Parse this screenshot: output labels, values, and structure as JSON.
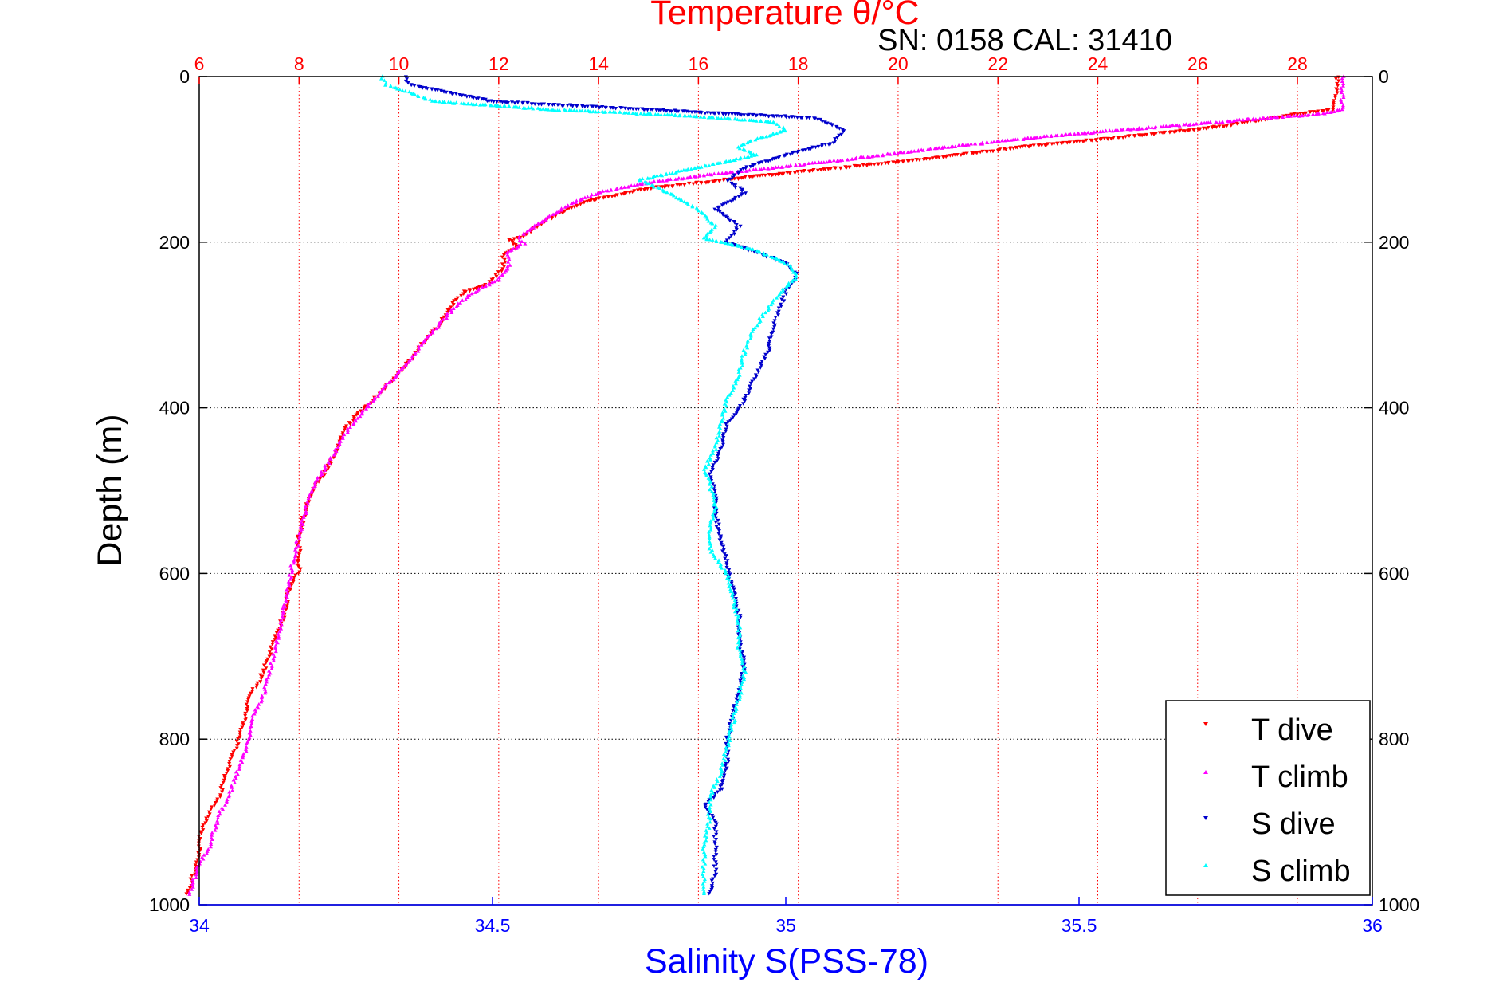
{
  "chart_data": {
    "type": "scatter",
    "title": "Temperature θ/°C",
    "subtitle": "SN: 0158  CAL: 31410",
    "xlabel": "Salinity S(PSS-78)",
    "x2label": "Temperature θ/°C",
    "ylabel": "Depth (m)",
    "xlim": [
      34,
      36
    ],
    "x2lim": [
      6,
      29.5
    ],
    "ylim": [
      0,
      1000
    ],
    "y_reversed": true,
    "grid": true,
    "legend_position": "bottom-right",
    "x_ticks": [
      "34",
      "34.5",
      "35",
      "35.5",
      "36"
    ],
    "x_tick_values": [
      34,
      34.5,
      35,
      35.5,
      36
    ],
    "x2_ticks": [
      "6",
      "8",
      "10",
      "12",
      "14",
      "16",
      "18",
      "20",
      "22",
      "24",
      "26",
      "28"
    ],
    "x2_tick_values": [
      6,
      8,
      10,
      12,
      14,
      16,
      18,
      20,
      22,
      24,
      26,
      28
    ],
    "y_ticks": [
      "0",
      "200",
      "400",
      "600",
      "800",
      "1000"
    ],
    "y_tick_values": [
      0,
      200,
      400,
      600,
      800,
      1000
    ],
    "colors": {
      "temperature_axis": "#ff0000",
      "salinity_axis": "#0000ff",
      "t_dive": "#ff0000",
      "t_climb": "#ff00ff",
      "s_dive": "#0000cc",
      "s_climb": "#00ffff"
    },
    "series": [
      {
        "name": "T dive",
        "axis": "temperature",
        "marker": "triangle-down",
        "color": "#ff0000",
        "points": [
          [
            28.8,
            0
          ],
          [
            28.8,
            20
          ],
          [
            28.7,
            40
          ],
          [
            28.0,
            45
          ],
          [
            26.5,
            60
          ],
          [
            25.0,
            70
          ],
          [
            22.5,
            85
          ],
          [
            20.5,
            100
          ],
          [
            18.0,
            115
          ],
          [
            16.5,
            125
          ],
          [
            15.0,
            135
          ],
          [
            13.8,
            150
          ],
          [
            13.2,
            165
          ],
          [
            12.8,
            180
          ],
          [
            12.5,
            193
          ],
          [
            12.2,
            197
          ],
          [
            12.4,
            205
          ],
          [
            12.1,
            215
          ],
          [
            12.1,
            230
          ],
          [
            11.8,
            250
          ],
          [
            11.3,
            260
          ],
          [
            11.0,
            280
          ],
          [
            10.8,
            300
          ],
          [
            10.5,
            320
          ],
          [
            10.2,
            345
          ],
          [
            9.8,
            370
          ],
          [
            9.5,
            390
          ],
          [
            9.2,
            405
          ],
          [
            9.0,
            420
          ],
          [
            8.8,
            440
          ],
          [
            8.7,
            460
          ],
          [
            8.5,
            480
          ],
          [
            8.3,
            495
          ],
          [
            8.2,
            510
          ],
          [
            8.1,
            530
          ],
          [
            8.0,
            555
          ],
          [
            8.0,
            575
          ],
          [
            8.0,
            595
          ],
          [
            7.8,
            620
          ],
          [
            7.7,
            650
          ],
          [
            7.5,
            680
          ],
          [
            7.4,
            700
          ],
          [
            7.2,
            730
          ],
          [
            7.0,
            750
          ],
          [
            6.9,
            780
          ],
          [
            6.8,
            800
          ],
          [
            6.6,
            830
          ],
          [
            6.5,
            850
          ],
          [
            6.4,
            870
          ],
          [
            6.2,
            890
          ],
          [
            6.0,
            920
          ],
          [
            6.0,
            940
          ],
          [
            5.9,
            960
          ],
          [
            5.8,
            980
          ],
          [
            5.7,
            990
          ]
        ]
      },
      {
        "name": "T climb",
        "axis": "temperature",
        "marker": "triangle-up",
        "color": "#ff00ff",
        "points": [
          [
            28.9,
            0
          ],
          [
            28.9,
            20
          ],
          [
            28.9,
            40
          ],
          [
            28.5,
            45
          ],
          [
            27.0,
            52
          ],
          [
            25.0,
            62
          ],
          [
            23.0,
            72
          ],
          [
            21.0,
            85
          ],
          [
            19.0,
            100
          ],
          [
            17.5,
            110
          ],
          [
            16.0,
            120
          ],
          [
            14.8,
            130
          ],
          [
            14.0,
            140
          ],
          [
            13.4,
            155
          ],
          [
            13.0,
            170
          ],
          [
            12.6,
            185
          ],
          [
            12.4,
            195
          ],
          [
            12.5,
            202
          ],
          [
            12.2,
            210
          ],
          [
            12.2,
            230
          ],
          [
            12.0,
            245
          ],
          [
            11.5,
            260
          ],
          [
            11.1,
            280
          ],
          [
            10.8,
            300
          ],
          [
            10.5,
            320
          ],
          [
            10.2,
            345
          ],
          [
            9.8,
            370
          ],
          [
            9.5,
            390
          ],
          [
            9.2,
            410
          ],
          [
            9.0,
            425
          ],
          [
            8.8,
            445
          ],
          [
            8.6,
            465
          ],
          [
            8.4,
            485
          ],
          [
            8.3,
            495
          ],
          [
            8.2,
            510
          ],
          [
            8.1,
            530
          ],
          [
            8.0,
            555
          ],
          [
            7.9,
            580
          ],
          [
            7.8,
            610
          ],
          [
            7.7,
            640
          ],
          [
            7.6,
            670
          ],
          [
            7.5,
            700
          ],
          [
            7.4,
            720
          ],
          [
            7.3,
            745
          ],
          [
            7.1,
            770
          ],
          [
            7.0,
            795
          ],
          [
            6.9,
            820
          ],
          [
            6.7,
            850
          ],
          [
            6.6,
            870
          ],
          [
            6.4,
            890
          ],
          [
            6.3,
            910
          ],
          [
            6.2,
            930
          ],
          [
            6.0,
            950
          ],
          [
            5.9,
            970
          ],
          [
            5.8,
            990
          ]
        ]
      },
      {
        "name": "S dive",
        "axis": "salinity",
        "marker": "triangle-down",
        "color": "#0000cc",
        "points": [
          [
            34.35,
            0
          ],
          [
            34.36,
            10
          ],
          [
            34.43,
            20
          ],
          [
            34.5,
            30
          ],
          [
            34.9,
            45
          ],
          [
            35.05,
            50
          ],
          [
            35.1,
            65
          ],
          [
            35.08,
            80
          ],
          [
            35.0,
            95
          ],
          [
            34.93,
            110
          ],
          [
            34.9,
            125
          ],
          [
            34.93,
            140
          ],
          [
            34.88,
            160
          ],
          [
            34.92,
            180
          ],
          [
            34.9,
            200
          ],
          [
            34.95,
            212
          ],
          [
            35.0,
            225
          ],
          [
            35.02,
            240
          ],
          [
            35.0,
            260
          ],
          [
            34.99,
            280
          ],
          [
            34.98,
            300
          ],
          [
            34.97,
            330
          ],
          [
            34.95,
            360
          ],
          [
            34.93,
            390
          ],
          [
            34.9,
            420
          ],
          [
            34.89,
            450
          ],
          [
            34.87,
            480
          ],
          [
            34.88,
            500
          ],
          [
            34.88,
            530
          ],
          [
            34.89,
            560
          ],
          [
            34.9,
            590
          ],
          [
            34.91,
            620
          ],
          [
            34.92,
            650
          ],
          [
            34.92,
            680
          ],
          [
            34.93,
            710
          ],
          [
            34.92,
            740
          ],
          [
            34.91,
            770
          ],
          [
            34.9,
            800
          ],
          [
            34.9,
            830
          ],
          [
            34.89,
            860
          ],
          [
            34.86,
            880
          ],
          [
            34.88,
            900
          ],
          [
            34.88,
            930
          ],
          [
            34.88,
            960
          ],
          [
            34.87,
            990
          ]
        ]
      },
      {
        "name": "S climb",
        "axis": "salinity",
        "marker": "triangle-up",
        "color": "#00ffff",
        "points": [
          [
            34.31,
            0
          ],
          [
            34.32,
            10
          ],
          [
            34.36,
            20
          ],
          [
            34.4,
            30
          ],
          [
            34.6,
            40
          ],
          [
            34.85,
            48
          ],
          [
            34.98,
            55
          ],
          [
            35.0,
            65
          ],
          [
            34.95,
            75
          ],
          [
            34.92,
            85
          ],
          [
            34.95,
            95
          ],
          [
            34.85,
            110
          ],
          [
            34.75,
            125
          ],
          [
            34.8,
            140
          ],
          [
            34.85,
            160
          ],
          [
            34.88,
            180
          ],
          [
            34.86,
            195
          ],
          [
            34.95,
            210
          ],
          [
            35.0,
            225
          ],
          [
            35.02,
            240
          ],
          [
            34.99,
            260
          ],
          [
            34.97,
            280
          ],
          [
            34.95,
            300
          ],
          [
            34.93,
            330
          ],
          [
            34.92,
            360
          ],
          [
            34.9,
            390
          ],
          [
            34.89,
            420
          ],
          [
            34.88,
            450
          ],
          [
            34.86,
            475
          ],
          [
            34.87,
            490
          ],
          [
            34.88,
            520
          ],
          [
            34.87,
            550
          ],
          [
            34.87,
            570
          ],
          [
            34.9,
            600
          ],
          [
            34.91,
            630
          ],
          [
            34.92,
            660
          ],
          [
            34.92,
            690
          ],
          [
            34.93,
            720
          ],
          [
            34.92,
            750
          ],
          [
            34.91,
            780
          ],
          [
            34.9,
            810
          ],
          [
            34.89,
            840
          ],
          [
            34.87,
            870
          ],
          [
            34.87,
            900
          ],
          [
            34.86,
            930
          ],
          [
            34.86,
            960
          ],
          [
            34.86,
            990
          ]
        ]
      }
    ]
  }
}
